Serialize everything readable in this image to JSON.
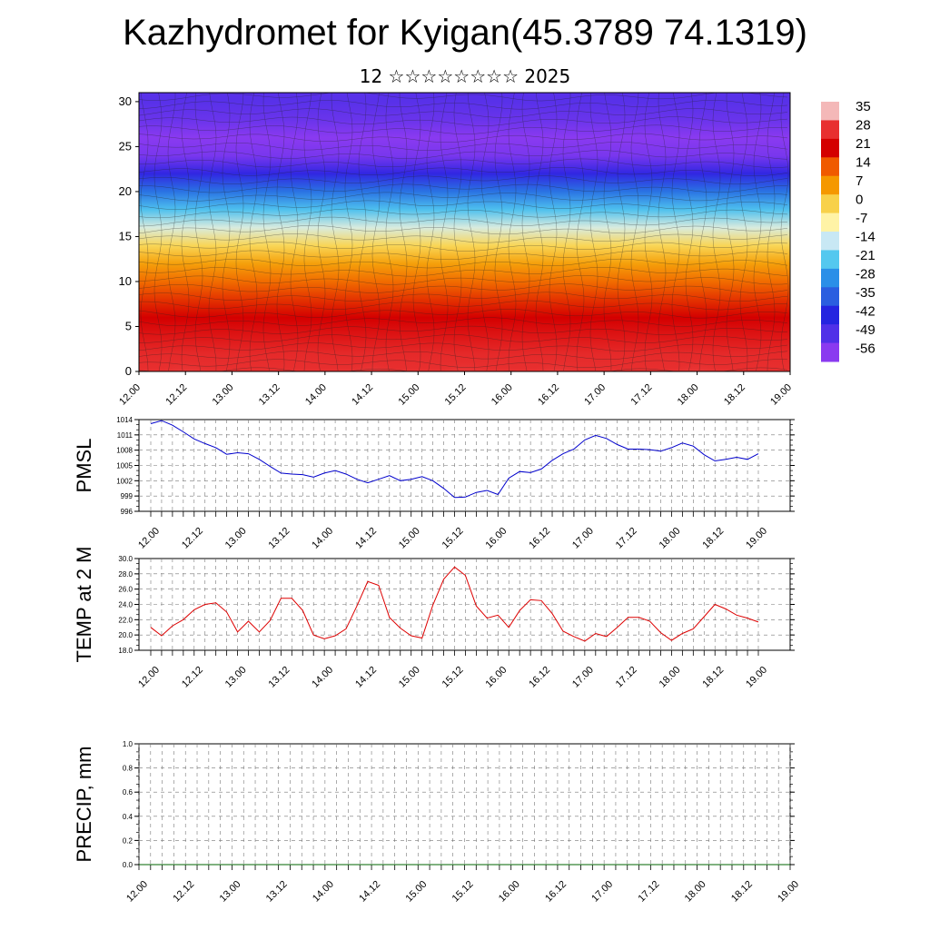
{
  "title": "Kazhydromet for Kyigan(45.3789 74.1319)",
  "subtitle": "12 ☆☆☆☆☆☆☆☆ 2025",
  "chart_data": [
    {
      "type": "heatmap",
      "name": "vertical-temperature-wind-cross-section",
      "ytick_labels": [
        "0",
        "5",
        "10",
        "15",
        "20",
        "25",
        "30"
      ],
      "ylim": [
        0,
        31
      ],
      "xtick_labels": [
        "12.00",
        "12.12",
        "13.00",
        "13.12",
        "14.00",
        "14.12",
        "15.00",
        "15.12",
        "16.00",
        "16.12",
        "17.00",
        "17.12",
        "18.00",
        "18.12",
        "19.00"
      ],
      "colorbar_labels": [
        "35",
        "28",
        "21",
        "14",
        "7",
        "0",
        "-7",
        "-14",
        "-21",
        "-28",
        "-35",
        "-42",
        "-49",
        "-56"
      ],
      "colorbar_colors": [
        "#f4b8b8",
        "#e83030",
        "#d40000",
        "#f05a00",
        "#f59800",
        "#f8d14a",
        "#fff3a6",
        "#c8e8f4",
        "#54c8ef",
        "#2a8fe8",
        "#2a5ee0",
        "#2424e0",
        "#5030e8",
        "#8a3af0"
      ],
      "temperature_profile_levels": [
        0,
        2,
        4,
        6,
        8,
        10,
        12,
        14,
        16,
        18,
        20,
        22,
        24,
        26,
        28,
        30
      ],
      "temperature_profile_values": [
        28,
        27,
        24,
        21,
        17,
        12,
        6,
        -1,
        -12,
        -22,
        -32,
        -44,
        -54,
        -58,
        -52,
        -50
      ],
      "warm_cores_x": [
        "12.12",
        "14.12",
        "15.12",
        "16.12",
        "18.00"
      ]
    },
    {
      "type": "line",
      "ylabel": "PMSL",
      "ylim": [
        996,
        1014
      ],
      "ytick_labels": [
        "1014",
        "1011",
        "1008",
        "1005",
        "1002",
        "999",
        "996"
      ],
      "xtick_labels": [
        "12.00",
        "12.12",
        "13.00",
        "13.12",
        "14.00",
        "14.12",
        "15.00",
        "15.12",
        "16.00",
        "16.12",
        "17.00",
        "17.12",
        "18.00",
        "18.12",
        "19.00"
      ],
      "color": "#0000cc",
      "values": [
        1013.2,
        1013.8,
        1012.9,
        1011.6,
        1010.2,
        1009.3,
        1008.5,
        1007.2,
        1007.5,
        1007.3,
        1006.2,
        1004.8,
        1003.5,
        1003.3,
        1003.2,
        1002.7,
        1003.5,
        1004.0,
        1003.3,
        1002.3,
        1001.6,
        1002.3,
        1003.0,
        1002.0,
        1002.3,
        1002.8,
        1002.0,
        1000.5,
        998.7,
        998.8,
        999.7,
        1000.1,
        999.3,
        1002.5,
        1003.8,
        1003.6,
        1004.3,
        1006.0,
        1007.3,
        1008.2,
        1010.0,
        1010.9,
        1010.3,
        1009.1,
        1008.2,
        1008.2,
        1008.1,
        1007.8,
        1008.5,
        1009.4,
        1008.8,
        1007.1,
        1005.9,
        1006.2,
        1006.6,
        1006.2,
        1007.3
      ]
    },
    {
      "type": "line",
      "ylabel": "TEMP at 2 M",
      "ylim": [
        18,
        30
      ],
      "ytick_labels": [
        "30.0",
        "28.0",
        "26.0",
        "24.0",
        "22.0",
        "20.0",
        "18.0"
      ],
      "xtick_labels": [
        "12.00",
        "12.12",
        "13.00",
        "13.12",
        "14.00",
        "14.12",
        "15.00",
        "15.12",
        "16.00",
        "16.12",
        "17.00",
        "17.12",
        "18.00",
        "18.12",
        "19.00"
      ],
      "color": "#dd0000",
      "values": [
        21.0,
        19.9,
        21.2,
        22.0,
        23.3,
        24.0,
        24.2,
        23.0,
        20.4,
        21.8,
        20.4,
        21.9,
        24.8,
        24.8,
        23.2,
        20.0,
        19.5,
        19.9,
        20.8,
        23.8,
        27.0,
        26.5,
        22.3,
        20.9,
        19.9,
        19.6,
        23.9,
        27.3,
        28.9,
        27.8,
        23.8,
        22.2,
        22.6,
        21.0,
        23.2,
        24.6,
        24.5,
        22.8,
        20.5,
        19.8,
        19.2,
        20.2,
        19.8,
        21.0,
        22.3,
        22.3,
        21.8,
        20.3,
        19.3,
        20.2,
        20.8,
        22.4,
        24.0,
        23.4,
        22.6,
        22.2,
        21.7
      ]
    },
    {
      "type": "line",
      "ylabel": "PRECIP, mm",
      "ylim": [
        0,
        1
      ],
      "ytick_labels": [
        "1.0",
        "0.8",
        "0.6",
        "0.4",
        "0.2",
        "0.0"
      ],
      "xtick_labels": [
        "12.00",
        "12.12",
        "13.00",
        "13.12",
        "14.00",
        "14.12",
        "15.00",
        "15.12",
        "16.00",
        "16.12",
        "17.00",
        "17.12",
        "18.00",
        "18.12",
        "19.00"
      ],
      "color": "#006600",
      "values": [
        0,
        0,
        0,
        0,
        0,
        0,
        0,
        0,
        0,
        0,
        0,
        0,
        0,
        0,
        0,
        0,
        0,
        0,
        0,
        0,
        0,
        0,
        0,
        0,
        0,
        0,
        0,
        0,
        0,
        0,
        0,
        0,
        0,
        0,
        0,
        0,
        0,
        0,
        0,
        0,
        0,
        0,
        0,
        0,
        0,
        0,
        0,
        0,
        0,
        0,
        0,
        0,
        0,
        0,
        0,
        0,
        0
      ]
    }
  ]
}
